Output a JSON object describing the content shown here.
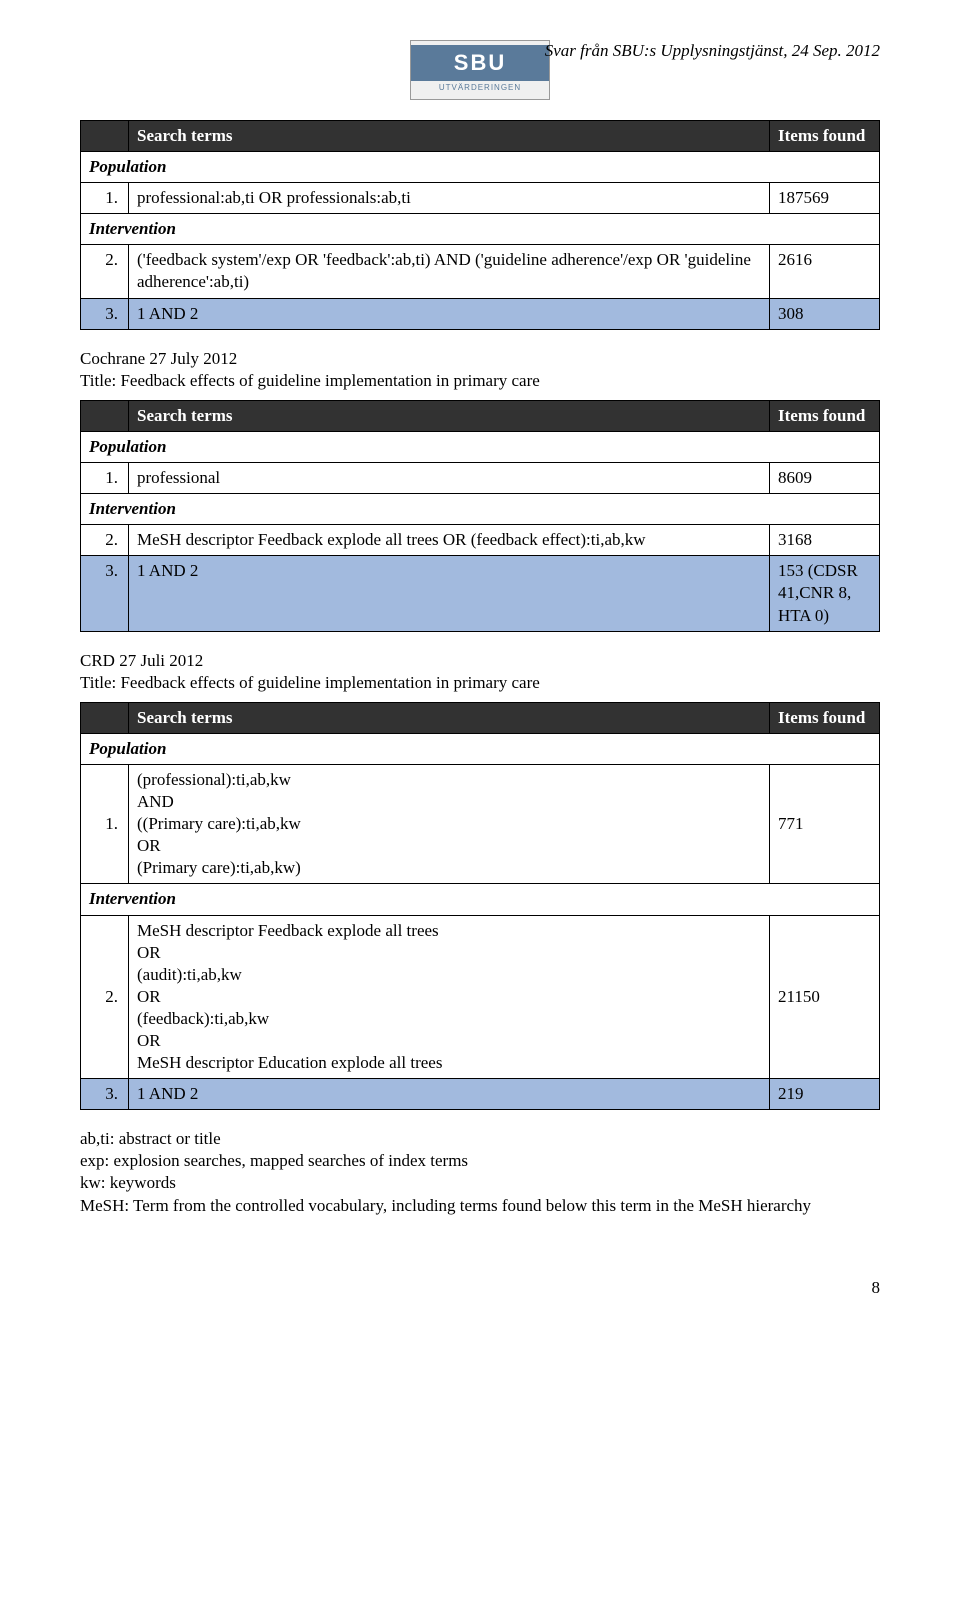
{
  "header": {
    "logo_main": "SBU",
    "logo_sub": "UTVÄRDERINGEN",
    "source_line": "Svar från SBU:s Upplysningstjänst, 24 Sep. 2012"
  },
  "labels": {
    "search_terms": "Search terms",
    "items_found": "Items found",
    "population": "Population",
    "intervention": "Intervention"
  },
  "table1": {
    "rows": [
      {
        "n": "1.",
        "text": "professional:ab,ti OR professionals:ab,ti",
        "val": "187569"
      },
      {
        "n": "2.",
        "text": "('feedback system'/exp OR 'feedback':ab,ti) AND ('guideline adherence'/exp OR 'guideline adherence':ab,ti)",
        "val": "2616"
      },
      {
        "n": "3.",
        "text": "1 AND 2",
        "val": "308"
      }
    ]
  },
  "block2": {
    "title_line1": "Cochrane 27 July 2012",
    "title_line2": "Title: Feedback effects of guideline implementation in primary care",
    "rows": [
      {
        "n": "1.",
        "text": "professional",
        "val": "8609"
      },
      {
        "n": "2.",
        "text": "MeSH descriptor Feedback explode all trees OR (feedback effect):ti,ab,kw",
        "val": "3168"
      },
      {
        "n": "3.",
        "text": "1 AND 2",
        "val": "153 (CDSR 41,CNR 8, HTA 0)"
      }
    ]
  },
  "block3": {
    "title_line1": "CRD 27 Juli 2012",
    "title_line2": "Title: Feedback effects of guideline implementation in primary care",
    "rows": [
      {
        "n": "1.",
        "text": "(professional):ti,ab,kw\nAND\n((Primary care):ti,ab,kw\nOR\n(Primary care):ti,ab,kw)",
        "val": "771"
      },
      {
        "n": "2.",
        "text": "MeSH descriptor Feedback explode all trees\nOR\n(audit):ti,ab,kw\nOR\n(feedback):ti,ab,kw\nOR\nMeSH descriptor Education explode all trees",
        "val": "21150"
      },
      {
        "n": "3.",
        "text": "1 AND 2",
        "val": "219"
      }
    ]
  },
  "notes": [
    "ab,ti: abstract or title",
    "exp: explosion searches, mapped searches of index terms",
    "kw: keywords",
    "MeSH: Term from the controlled vocabulary, including terms found below this term in the MeSH hierarchy"
  ],
  "page_number": "8"
}
